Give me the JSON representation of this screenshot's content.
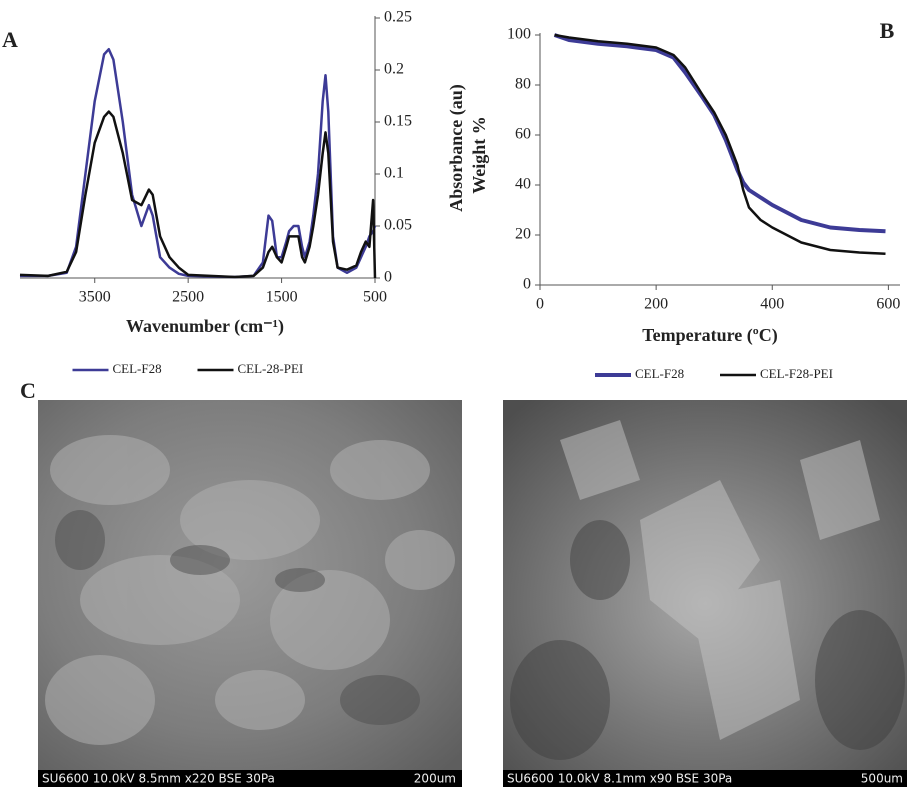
{
  "chart_data": [
    {
      "type": "line",
      "panel_label": "A",
      "x_label": "Wavenumber (cm⁻¹)",
      "y_label": "Absorbance (au)",
      "y_axis_side": "right",
      "legend": "bottom",
      "x": [
        4300,
        4000,
        3800,
        3700,
        3600,
        3500,
        3400,
        3350,
        3300,
        3200,
        3100,
        3000,
        2920,
        2880,
        2800,
        2700,
        2600,
        2500,
        2000,
        1800,
        1700,
        1640,
        1600,
        1550,
        1500,
        1450,
        1420,
        1370,
        1320,
        1280,
        1250,
        1200,
        1160,
        1110,
        1060,
        1030,
        1000,
        950,
        900,
        800,
        700,
        650,
        600,
        560,
        520,
        500
      ],
      "xlim": [
        4300,
        500
      ],
      "xticks": [
        3500,
        2500,
        1500,
        500
      ],
      "ylim": [
        0,
        0.25
      ],
      "yticks": [
        0,
        0.05,
        0.1,
        0.15,
        0.2,
        0.25
      ],
      "series": [
        {
          "name": "CEL-F28",
          "color": "#3d3b96",
          "width": 2.5,
          "values": [
            0.002,
            0.002,
            0.005,
            0.03,
            0.1,
            0.17,
            0.215,
            0.22,
            0.21,
            0.15,
            0.08,
            0.05,
            0.07,
            0.06,
            0.02,
            0.01,
            0.004,
            0.002,
            0.001,
            0.002,
            0.015,
            0.06,
            0.055,
            0.02,
            0.02,
            0.035,
            0.045,
            0.05,
            0.05,
            0.03,
            0.02,
            0.035,
            0.06,
            0.1,
            0.17,
            0.195,
            0.16,
            0.04,
            0.01,
            0.005,
            0.01,
            0.02,
            0.03,
            0.04,
            0.045,
            0.05
          ]
        },
        {
          "name": "CEL-28-PEI",
          "color": "#111111",
          "width": 2.5,
          "values": [
            0.003,
            0.002,
            0.006,
            0.025,
            0.08,
            0.13,
            0.155,
            0.16,
            0.155,
            0.12,
            0.075,
            0.07,
            0.085,
            0.08,
            0.04,
            0.02,
            0.01,
            0.003,
            0.001,
            0.002,
            0.01,
            0.025,
            0.03,
            0.02,
            0.015,
            0.03,
            0.04,
            0.04,
            0.04,
            0.02,
            0.015,
            0.03,
            0.05,
            0.08,
            0.12,
            0.14,
            0.12,
            0.035,
            0.01,
            0.008,
            0.012,
            0.025,
            0.035,
            0.03,
            0.075,
            0.0
          ]
        }
      ]
    },
    {
      "type": "line",
      "panel_label": "B",
      "x_label": "Temperature (ºC)",
      "y_label": "Weight %",
      "y_axis_side": "left",
      "legend": "bottom",
      "x": [
        25,
        50,
        100,
        150,
        200,
        230,
        250,
        280,
        300,
        320,
        340,
        350,
        360,
        380,
        400,
        450,
        500,
        550,
        595
      ],
      "xlim": [
        0,
        620
      ],
      "xticks": [
        0,
        200,
        400,
        600
      ],
      "ylim": [
        0,
        100
      ],
      "yticks": [
        0,
        20,
        40,
        60,
        80,
        100
      ],
      "series": [
        {
          "name": "CEL-F28",
          "color": "#3d3b96",
          "width": 4,
          "values": [
            100,
            98,
            96.5,
            95.5,
            94,
            91,
            85,
            75,
            68,
            58,
            46,
            41,
            38,
            35,
            32,
            26,
            23,
            22,
            21.5
          ]
        },
        {
          "name": "CEL-F28-PEI",
          "color": "#111111",
          "width": 2.5,
          "values": [
            100,
            99,
            97.5,
            96.5,
            95,
            92,
            87,
            76,
            69,
            60,
            48,
            38,
            31,
            26,
            23,
            17,
            14,
            13,
            12.5
          ]
        }
      ]
    }
  ],
  "panel_c": {
    "label": "C",
    "micrographs": [
      {
        "caption": "SU6600 10.0kV 8.5mm x220 BSE 30Pa",
        "scale": "200um"
      },
      {
        "caption": "SU6600 10.0kV 8.1mm x90 BSE 30Pa",
        "scale": "500um"
      }
    ]
  }
}
